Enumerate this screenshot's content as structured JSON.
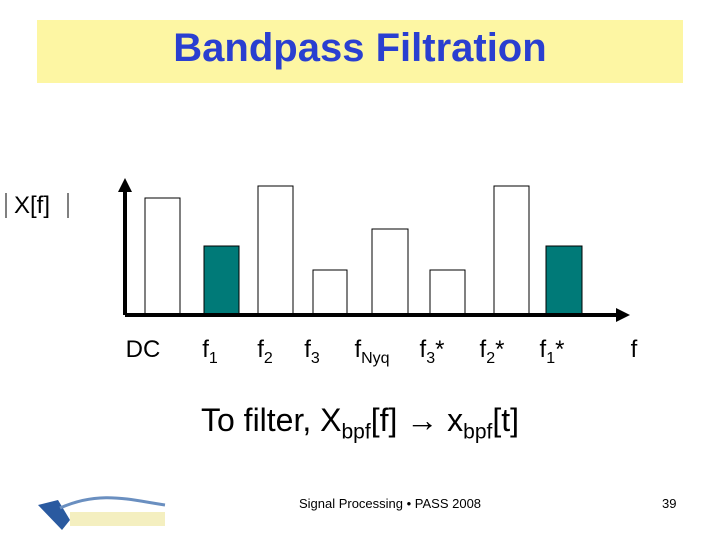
{
  "header": {
    "title": "Bandpass Filtration"
  },
  "plot": {
    "y_label": "X[f]",
    "labels": [
      {
        "base": "DC"
      },
      {
        "base": "f",
        "sub": "1"
      },
      {
        "base": "f",
        "sub": "2"
      },
      {
        "base": "f",
        "sub": "3"
      },
      {
        "base": "f",
        "sub": "Nyq"
      },
      {
        "base": "f",
        "sub": "3",
        "post": "*"
      },
      {
        "base": "f",
        "sub": "2",
        "post": "*"
      },
      {
        "base": "f",
        "sub": "1",
        "post": "*"
      },
      {
        "base": "f"
      }
    ]
  },
  "caption": {
    "part1": "To filter, X",
    "sub1": "bpf",
    "part2": "[f] → x",
    "sub2": "bpf",
    "part3": "[t]"
  },
  "footer": {
    "center": "Signal Processing • PASS 2008",
    "page": "39"
  }
}
